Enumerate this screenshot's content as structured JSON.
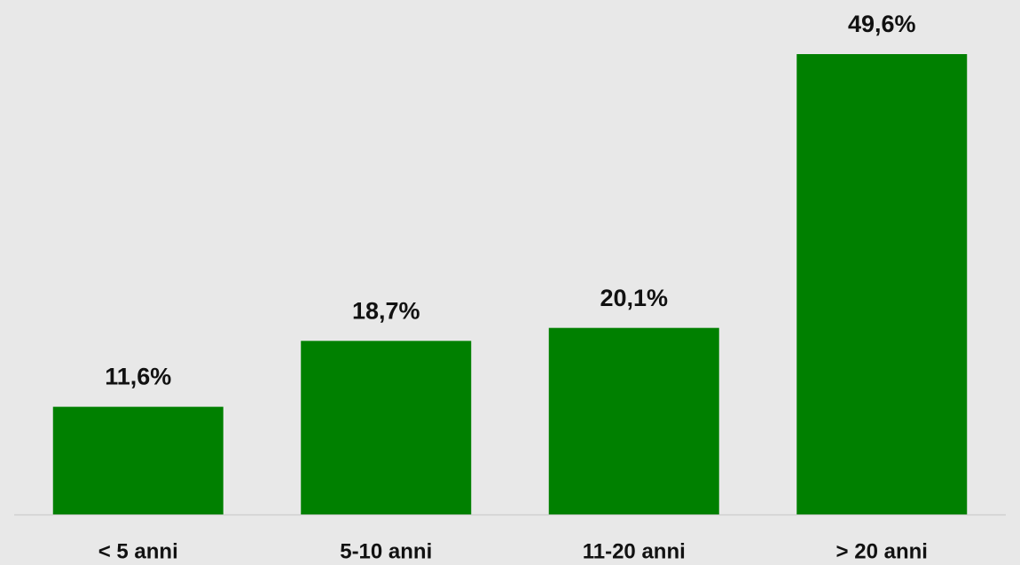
{
  "chart_data": {
    "type": "bar",
    "categories": [
      "< 5 anni",
      "5-10 anni",
      "11-20 anni",
      "> 20 anni"
    ],
    "values": [
      11.6,
      18.7,
      20.1,
      49.6
    ],
    "value_labels": [
      "11,6%",
      "18,7%",
      "20,1%",
      "49,6%"
    ],
    "color": "#008000"
  }
}
